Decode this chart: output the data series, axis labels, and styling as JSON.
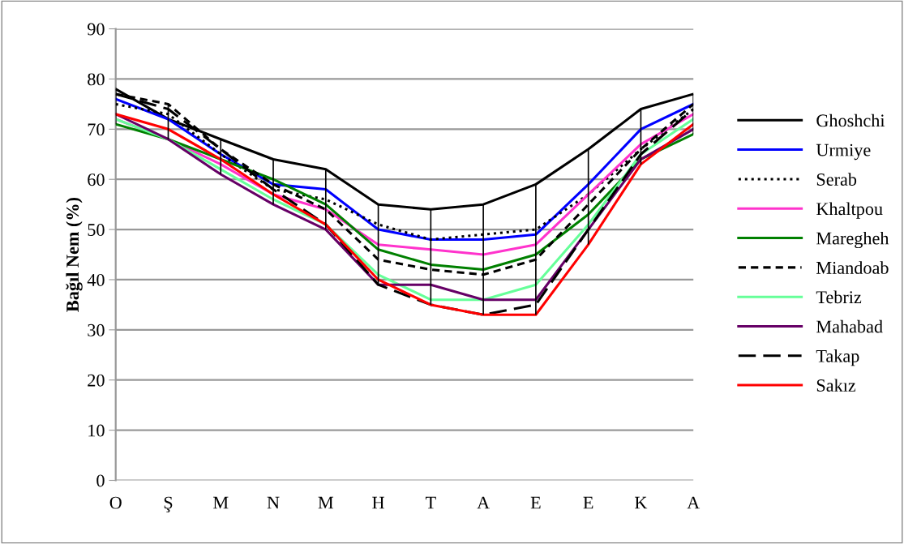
{
  "chart_data": {
    "type": "line",
    "ylabel": "Bağıl Nem (%)",
    "categories": [
      "O",
      "Ş",
      "M",
      "N",
      "M",
      "H",
      "T",
      "A",
      "E",
      "E",
      "K",
      "A"
    ],
    "ylim": [
      0,
      90
    ],
    "yticks": [
      0,
      10,
      20,
      30,
      40,
      50,
      60,
      70,
      80,
      90
    ],
    "grid": "y",
    "legend": "right",
    "marker": "none",
    "series": [
      {
        "name": "Ghoshchi",
        "color": "#000000",
        "line_style": "solid",
        "values": [
          78,
          72,
          68,
          64,
          62,
          55,
          54,
          55,
          59,
          66,
          74,
          77
        ],
        "errors": [
          [
            71,
            78
          ],
          [
            68,
            75
          ],
          [
            61,
            68
          ],
          [
            55,
            64
          ],
          [
            50,
            62
          ],
          [
            39,
            55
          ],
          [
            35,
            54
          ],
          [
            33,
            55
          ],
          [
            33,
            59
          ],
          [
            47,
            66
          ],
          [
            63,
            74
          ],
          [
            69,
            77
          ]
        ]
      },
      {
        "name": "Urmiye",
        "color": "#0000ff",
        "line_style": "solid",
        "values": [
          76,
          72,
          65,
          59,
          58,
          50,
          48,
          48,
          49,
          59,
          70,
          75
        ]
      },
      {
        "name": "Serab",
        "color": "#000000",
        "line_style": "dotted",
        "values": [
          75,
          73,
          65,
          58,
          56,
          51,
          48,
          49,
          50,
          57,
          66,
          74
        ]
      },
      {
        "name": "Khaltpou",
        "color": "#ff33cc",
        "line_style": "solid",
        "values": [
          72,
          68,
          63,
          57,
          54,
          47,
          46,
          45,
          47,
          57,
          67,
          73
        ]
      },
      {
        "name": "Maregheh",
        "color": "#008000",
        "line_style": "solid",
        "values": [
          71,
          68,
          64,
          60,
          55,
          46,
          43,
          42,
          45,
          53,
          64,
          69
        ]
      },
      {
        "name": "Miandoab",
        "color": "#000000",
        "line_style": "dashed",
        "values": [
          77,
          75,
          66,
          59,
          54,
          44,
          42,
          41,
          44,
          55,
          66,
          75
        ]
      },
      {
        "name": "Tebriz",
        "color": "#66ff99",
        "line_style": "solid",
        "values": [
          72,
          68,
          62,
          56,
          51,
          41,
          36,
          36,
          39,
          51,
          65,
          72
        ]
      },
      {
        "name": "Mahabad",
        "color": "#660066",
        "line_style": "solid",
        "values": [
          73,
          68,
          61,
          55,
          50,
          39,
          39,
          36,
          36,
          50,
          64,
          70
        ]
      },
      {
        "name": "Takap",
        "color": "#000000",
        "line_style": "longdash",
        "values": [
          77,
          74,
          66,
          58,
          51,
          39,
          35,
          33,
          35,
          50,
          65,
          74
        ]
      },
      {
        "name": "Sakız",
        "color": "#ff0000",
        "line_style": "solid",
        "values": [
          73,
          70,
          64,
          57,
          51,
          40,
          35,
          33,
          33,
          47,
          63,
          71
        ]
      }
    ]
  }
}
